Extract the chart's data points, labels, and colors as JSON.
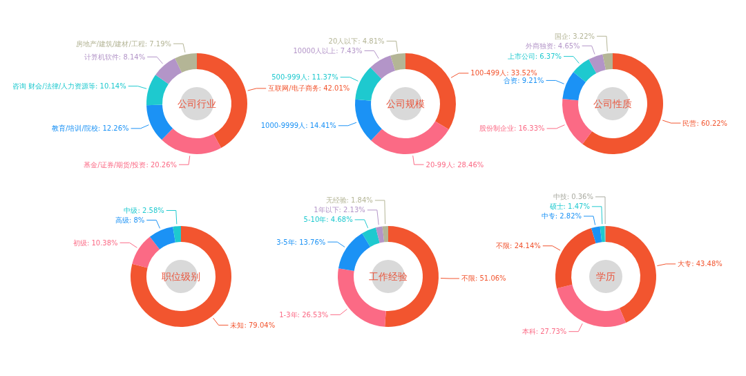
{
  "chart_data": [
    {
      "type": "donut",
      "title": "公司行业",
      "categories": [
        "互联网/电子商务",
        "基金/证券/期货/投资",
        "教育/培训/院校",
        "咨询 财会/法律/人力资源等",
        "计算机软件",
        "房地产/建筑/建材/工程"
      ],
      "values": [
        42.01,
        20.26,
        12.26,
        10.14,
        8.14,
        7.19
      ],
      "value_labels": [
        ": 42.01%",
        ": 20.26%",
        ": 12.26%",
        ": 10.14%",
        ": 8.14%",
        ": 7.19%"
      ],
      "colors": [
        "#f2552f",
        "#fb6a85",
        "#1b92f5",
        "#1ec9cf",
        "#b395c8",
        "#b4b596"
      ]
    },
    {
      "type": "donut",
      "title": "公司规模",
      "categories": [
        "100-499人",
        "20-99人",
        "1000-9999人",
        "500-999人",
        "10000人以上",
        "20人以下"
      ],
      "values": [
        33.52,
        28.46,
        14.41,
        11.37,
        7.43,
        4.81
      ],
      "value_labels": [
        ": 33.52%",
        ": 28.46%",
        ": 14.41%",
        ": 11.37%",
        ": 7.43%",
        ": 4.81%"
      ],
      "colors": [
        "#f2552f",
        "#fb6a85",
        "#1b92f5",
        "#1ec9cf",
        "#b395c8",
        "#b4b596"
      ]
    },
    {
      "type": "donut",
      "title": "公司性质",
      "categories": [
        "民营",
        "股份制企业",
        "合资",
        "上市公司",
        "外商独资",
        "国企"
      ],
      "values": [
        60.22,
        16.33,
        9.21,
        6.37,
        4.65,
        3.22
      ],
      "value_labels": [
        ": 60.22%",
        ": 16.33%",
        ": 9.21%",
        ": 6.37%",
        ": 4.65%",
        ": 3.22%"
      ],
      "colors": [
        "#f2552f",
        "#fb6a85",
        "#1b92f5",
        "#1ec9cf",
        "#b395c8",
        "#b4b596"
      ]
    },
    {
      "type": "donut",
      "title": "职位级别",
      "categories": [
        "未知",
        "初级",
        "高级",
        "中级"
      ],
      "values": [
        79.04,
        10.38,
        8,
        2.58
      ],
      "value_labels": [
        ": 79.04%",
        ": 10.38%",
        ": 8%",
        ": 2.58%"
      ],
      "colors": [
        "#f2552f",
        "#fb6a85",
        "#1b92f5",
        "#1ec9cf"
      ]
    },
    {
      "type": "donut",
      "title": "工作经验",
      "categories": [
        "不限",
        "1-3年",
        "3-5年",
        "5-10年",
        "1年以下",
        "无经验"
      ],
      "values": [
        51.06,
        26.53,
        13.76,
        4.68,
        2.13,
        1.84
      ],
      "value_labels": [
        ": 51.06%",
        ": 26.53%",
        ": 13.76%",
        ": 4.68%",
        ": 2.13%",
        ": 1.84%"
      ],
      "colors": [
        "#f2552f",
        "#fb6a85",
        "#1b92f5",
        "#1ec9cf",
        "#b395c8",
        "#b4b596"
      ]
    },
    {
      "type": "donut",
      "title": "学历",
      "categories": [
        "大专",
        "本科",
        "不限",
        "中专",
        "硕士",
        "中技"
      ],
      "values": [
        43.48,
        27.73,
        24.14,
        2.82,
        1.47,
        0.36
      ],
      "value_labels": [
        ": 43.48%",
        ": 27.73%",
        ": 24.14%",
        ": 2.82%",
        ": 1.47%",
        ": 0.36%"
      ],
      "colors": [
        "#f2552f",
        "#fb6a85",
        "#f0512c",
        "#1b92f5",
        "#1ec9cf",
        "#a9aaa0"
      ]
    }
  ]
}
